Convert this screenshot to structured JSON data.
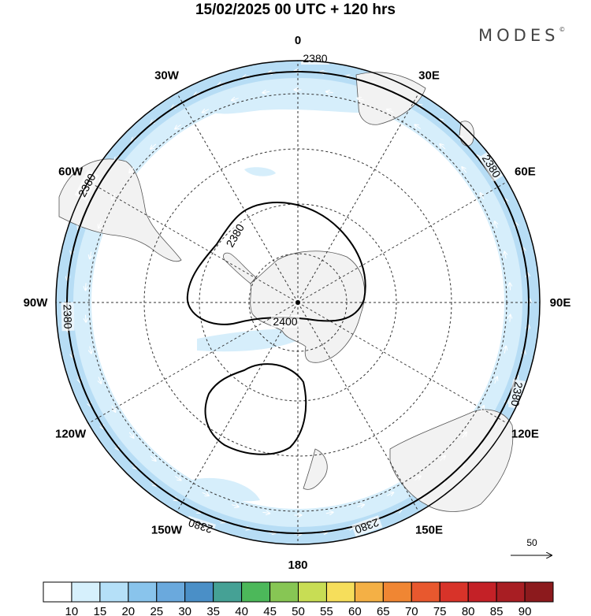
{
  "header": {
    "title": "15/02/2025  00 UTC  + 120 hrs",
    "brand": "MODES",
    "brand_mark": "©"
  },
  "map": {
    "projection": "south-polar-stereographic",
    "longitude_labels": [
      {
        "text": "0",
        "lon": 0
      },
      {
        "text": "30E",
        "lon": 30
      },
      {
        "text": "60E",
        "lon": 60
      },
      {
        "text": "90E",
        "lon": 90
      },
      {
        "text": "120E",
        "lon": 120
      },
      {
        "text": "150E",
        "lon": 150
      },
      {
        "text": "180",
        "lon": 180
      },
      {
        "text": "150W",
        "lon": -150
      },
      {
        "text": "120W",
        "lon": -120
      },
      {
        "text": "90W",
        "lon": -90
      },
      {
        "text": "60W",
        "lon": -60
      },
      {
        "text": "30W",
        "lon": -30
      }
    ],
    "contour_labels": [
      "2380",
      "2380",
      "2380",
      "2380",
      "2380",
      "2380",
      "2380",
      "2380",
      "2400"
    ],
    "wind_reference": {
      "value": "50"
    }
  },
  "colorbar": {
    "labels": [
      "10",
      "15",
      "20",
      "25",
      "30",
      "35",
      "40",
      "45",
      "50",
      "55",
      "60",
      "65",
      "70",
      "75",
      "80",
      "85",
      "90"
    ],
    "colors": [
      "#ffffff",
      "#d6f0fc",
      "#b5e0f8",
      "#89c4ec",
      "#6aa9dd",
      "#4a8fc7",
      "#45a195",
      "#4cb85a",
      "#87c654",
      "#c8dd54",
      "#f6de5b",
      "#f4b045",
      "#f08633",
      "#e8582e",
      "#d83329",
      "#c42127",
      "#a81e23",
      "#8c1a1d"
    ]
  },
  "colors": {
    "shade_light": "#d6eefb",
    "shade_mid": "#b7ddf5",
    "land": "#f2f2f2",
    "contour": "#000000",
    "vectors": "#ffffff"
  }
}
